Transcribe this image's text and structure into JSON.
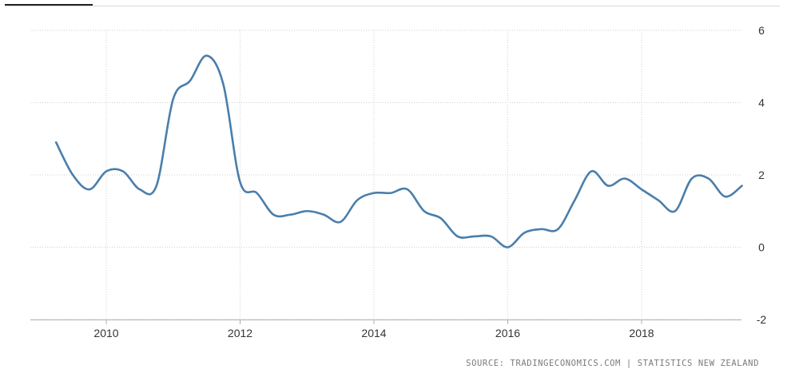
{
  "chart_data": {
    "type": "line",
    "title": "",
    "xlabel": "",
    "ylabel": "",
    "xlim": [
      2009.0,
      2020.3
    ],
    "ylim": [
      -2,
      6
    ],
    "x_ticks": [
      {
        "value": 2010,
        "label": "2010"
      },
      {
        "value": 2012,
        "label": "2012"
      },
      {
        "value": 2014,
        "label": "2014"
      },
      {
        "value": 2016,
        "label": "2016"
      },
      {
        "value": 2018,
        "label": "2018"
      }
    ],
    "y_ticks": [
      {
        "value": 6,
        "label": "6"
      },
      {
        "value": 4,
        "label": "4"
      },
      {
        "value": 2,
        "label": "2"
      },
      {
        "value": 0,
        "label": "0"
      },
      {
        "value": -2,
        "label": "-2"
      }
    ],
    "grid": true,
    "series": [
      {
        "color": "#4a7eab",
        "points": [
          [
            2009.25,
            2.9
          ],
          [
            2009.5,
            2.0
          ],
          [
            2009.75,
            1.6
          ],
          [
            2010.0,
            2.1
          ],
          [
            2010.25,
            2.1
          ],
          [
            2010.5,
            1.6
          ],
          [
            2010.75,
            1.7
          ],
          [
            2011.0,
            4.1
          ],
          [
            2011.25,
            4.6
          ],
          [
            2011.5,
            5.3
          ],
          [
            2011.75,
            4.5
          ],
          [
            2012.0,
            1.8
          ],
          [
            2012.25,
            1.5
          ],
          [
            2012.5,
            0.9
          ],
          [
            2012.75,
            0.9
          ],
          [
            2013.0,
            1.0
          ],
          [
            2013.25,
            0.9
          ],
          [
            2013.5,
            0.7
          ],
          [
            2013.75,
            1.3
          ],
          [
            2014.0,
            1.5
          ],
          [
            2014.25,
            1.5
          ],
          [
            2014.5,
            1.6
          ],
          [
            2014.75,
            1.0
          ],
          [
            2015.0,
            0.8
          ],
          [
            2015.25,
            0.3
          ],
          [
            2015.5,
            0.3
          ],
          [
            2015.75,
            0.3
          ],
          [
            2016.0,
            0.0
          ],
          [
            2016.25,
            0.4
          ],
          [
            2016.5,
            0.5
          ],
          [
            2016.75,
            0.5
          ],
          [
            2017.0,
            1.3
          ],
          [
            2017.25,
            2.1
          ],
          [
            2017.5,
            1.7
          ],
          [
            2017.75,
            1.9
          ],
          [
            2018.0,
            1.6
          ],
          [
            2018.25,
            1.3
          ],
          [
            2018.5,
            1.0
          ],
          [
            2018.75,
            1.9
          ],
          [
            2019.0,
            1.9
          ],
          [
            2019.25,
            1.4
          ],
          [
            2019.5,
            1.7
          ]
        ]
      }
    ]
  },
  "source": {
    "text": "SOURCE: TRADINGECONOMICS.COM | STATISTICS NEW ZEALAND"
  }
}
